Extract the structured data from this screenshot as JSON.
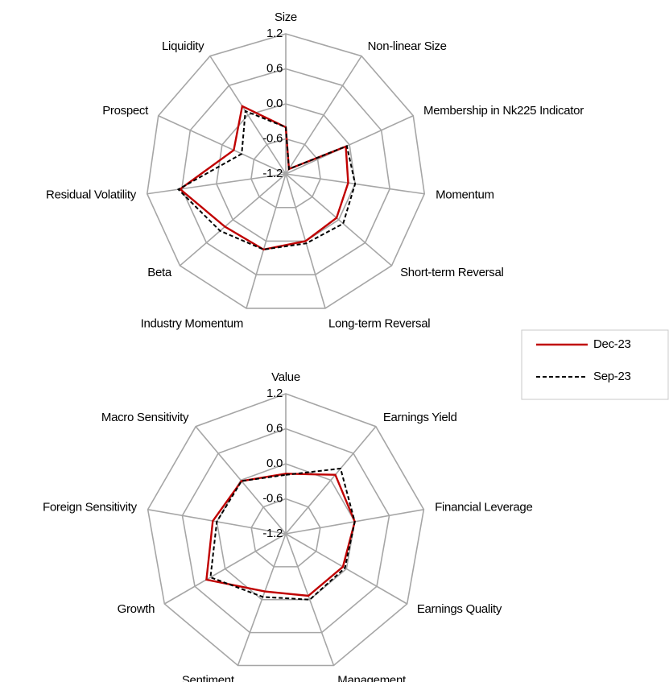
{
  "chart_data": [
    {
      "type": "radar",
      "categories": [
        "Size",
        "Non-linear Size",
        "Membership in Nk225 Indicator",
        "Momentum",
        "Short-term Reversal",
        "Long-term Reversal",
        "Industry Momentum",
        "Beta",
        "Residual Volatility",
        "Prospect",
        "Liquidity"
      ],
      "series": [
        {
          "name": "Dec-23",
          "color": "#c00000",
          "dashed": false,
          "values": [
            -0.4,
            -1.1,
            -0.07,
            -0.12,
            -0.05,
            0.0,
            0.15,
            0.18,
            0.63,
            -0.22,
            0.18
          ]
        },
        {
          "name": "Sep-23",
          "color": "#000000",
          "dashed": true,
          "values": [
            -0.4,
            -1.1,
            -0.05,
            0.0,
            0.1,
            0.04,
            0.15,
            0.29,
            0.66,
            -0.37,
            0.08
          ]
        }
      ],
      "ylim": [
        -1.2,
        1.2
      ],
      "yticks": [
        -1.2,
        -0.6,
        {
          "value": 0,
          "label": "0.0"
        },
        0.6,
        1.2
      ],
      "grid": true
    },
    {
      "type": "radar",
      "categories": [
        "Value",
        "Earnings Yield",
        "Financial Leverage",
        "Earnings Quality",
        "Management",
        "Sentiment",
        "Growth",
        "Foreign Sensitivity",
        "Macro Sensitivity"
      ],
      "series": [
        {
          "color": "#c00000",
          "dashed": false,
          "values": [
            -0.17,
            0.12,
            0.0,
            -0.07,
            -0.07,
            -0.15,
            0.37,
            0.07,
            -0.02
          ]
        },
        {
          "color": "#000000",
          "dashed": true,
          "values": [
            -0.19,
            0.26,
            0.0,
            -0.03,
            0.0,
            -0.05,
            0.29,
            0.0,
            -0.02
          ]
        }
      ],
      "ylim": [
        -1.2,
        1.2
      ],
      "yticks": [
        -1.2,
        -0.6,
        {
          "value": 0,
          "label": "0.0"
        },
        0.6,
        1.2
      ],
      "grid": true
    }
  ]
}
